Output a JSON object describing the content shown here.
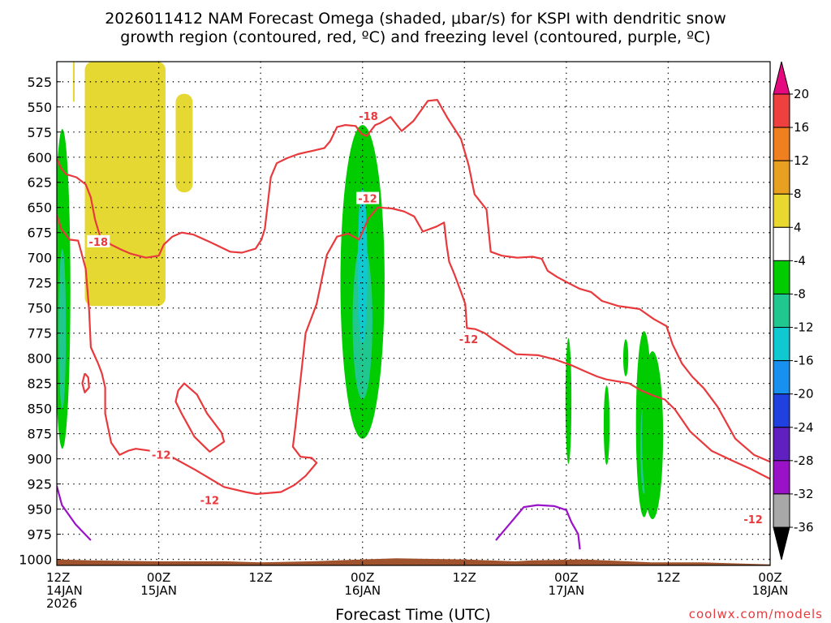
{
  "chart_data": {
    "type": "time-height",
    "title_line1": "2026011412 NAM Forecast Omega (shaded, μbar/s) for KSPI with dendritic snow",
    "title_line2": "growth region (contoured, red, ºC) and freezing level (contoured, purple, ºC)",
    "xlabel": "Forecast Time (UTC)",
    "credit": "coolwx.com/models",
    "x_range_hours": [
      0,
      84
    ],
    "x_ticks": [
      {
        "hour": 0,
        "l1": "12Z",
        "l2": "14JAN",
        "l3": "2026"
      },
      {
        "hour": 12,
        "l1": "00Z",
        "l2": "15JAN",
        "l3": ""
      },
      {
        "hour": 24,
        "l1": "12Z",
        "l2": "",
        "l3": ""
      },
      {
        "hour": 36,
        "l1": "00Z",
        "l2": "16JAN",
        "l3": ""
      },
      {
        "hour": 48,
        "l1": "12Z",
        "l2": "",
        "l3": ""
      },
      {
        "hour": 60,
        "l1": "00Z",
        "l2": "17JAN",
        "l3": ""
      },
      {
        "hour": 72,
        "l1": "12Z",
        "l2": "",
        "l3": ""
      },
      {
        "hour": 84,
        "l1": "00Z",
        "l2": "18JAN",
        "l3": ""
      }
    ],
    "y_axis_hpa": {
      "top": 505,
      "bottom": 1006,
      "ticks": [
        525,
        550,
        575,
        600,
        625,
        650,
        675,
        700,
        725,
        750,
        775,
        800,
        825,
        850,
        875,
        900,
        925,
        950,
        975,
        1000
      ]
    },
    "colorbar": {
      "labels": [
        "20",
        "16",
        "12",
        "8",
        "4",
        "-4",
        "-8",
        "-12",
        "-16",
        "-20",
        "-24",
        "-28",
        "-32",
        "-36"
      ],
      "colors": [
        "#e5097f",
        "#ef4040",
        "#f07f20",
        "#e8a020",
        "#e8d830",
        "#ffffff",
        "#00cc00",
        "#20c890",
        "#10c8d0",
        "#1890f0",
        "#2040e0",
        "#6020c0",
        "#9a12c8",
        "#a8a8a8",
        "#000000"
      ]
    },
    "colors": {
      "snow_growth_contour": "#e8393d",
      "freezing_level_contour": "#9a12c8",
      "terrain": "#a0522d",
      "omega_positive_4": "#e6d832",
      "omega_negative_4": "#00cc00",
      "omega_negative_8": "#20c890",
      "omega_negative_12": "#10c8d0"
    },
    "contour_labels": [
      {
        "text": "-18",
        "hour": 4.9,
        "hpa": 684
      },
      {
        "text": "-12",
        "hour": 12.3,
        "hpa": 896
      },
      {
        "text": "-12",
        "hour": 18.0,
        "hpa": 941
      },
      {
        "text": "-18",
        "hour": 36.7,
        "hpa": 559
      },
      {
        "text": "-12",
        "hour": 36.6,
        "hpa": 641
      },
      {
        "text": "-12",
        "hour": 48.5,
        "hpa": 781
      },
      {
        "text": "-12",
        "hour": 82.0,
        "hpa": 960
      }
    ],
    "snow_growth_contours_hour_hpa": [
      [
        [
          0,
          657
        ],
        [
          0.5,
          671
        ],
        [
          1.5,
          682
        ],
        [
          2.5,
          683
        ],
        [
          2.9,
          695
        ],
        [
          3.4,
          711
        ],
        [
          3.8,
          752
        ],
        [
          4.0,
          789
        ],
        [
          4.9,
          806
        ],
        [
          5.3,
          815
        ],
        [
          5.7,
          829
        ],
        [
          5.7,
          855
        ],
        [
          6.4,
          884
        ],
        [
          7.4,
          896
        ],
        [
          8.4,
          892
        ],
        [
          9.3,
          890
        ],
        [
          11,
          892
        ],
        [
          13.5,
          898
        ],
        [
          16.3,
          911
        ],
        [
          19.7,
          928
        ],
        [
          22.2,
          933
        ],
        [
          23.5,
          935
        ],
        [
          26.4,
          933
        ],
        [
          28.0,
          926
        ],
        [
          29.3,
          917
        ],
        [
          30.6,
          904
        ],
        [
          30.0,
          899
        ],
        [
          28.7,
          898
        ],
        [
          27.8,
          888
        ],
        [
          28.1,
          868
        ],
        [
          29.3,
          775
        ],
        [
          30.6,
          746
        ],
        [
          31.8,
          697
        ],
        [
          33.0,
          679
        ],
        [
          34.3,
          676
        ],
        [
          35.6,
          682
        ],
        [
          36.7,
          661
        ],
        [
          37.8,
          650
        ],
        [
          39.5,
          651
        ],
        [
          40.9,
          654
        ],
        [
          42.1,
          659
        ],
        [
          43.1,
          674
        ],
        [
          44.7,
          669
        ],
        [
          45.6,
          665
        ],
        [
          45.9,
          687
        ],
        [
          46.2,
          704
        ],
        [
          46.8,
          716
        ],
        [
          47.6,
          734
        ],
        [
          48.1,
          746
        ],
        [
          48.3,
          770
        ],
        [
          49.3,
          771
        ],
        [
          50.4,
          775
        ],
        [
          51.2,
          780
        ],
        [
          54.1,
          796
        ],
        [
          56.7,
          797
        ],
        [
          58.6,
          801
        ],
        [
          60.6,
          807
        ],
        [
          62.2,
          813
        ],
        [
          63.6,
          818
        ],
        [
          64.7,
          821
        ],
        [
          67.4,
          825
        ],
        [
          68.8,
          832
        ],
        [
          70.2,
          837
        ],
        [
          71.6,
          841
        ],
        [
          72.8,
          851
        ],
        [
          74.6,
          873
        ],
        [
          77.1,
          892
        ],
        [
          79.6,
          902
        ],
        [
          81.7,
          910
        ],
        [
          84,
          920
        ]
      ],
      [
        [
          0,
          601
        ],
        [
          0.5,
          611
        ],
        [
          1.1,
          617
        ],
        [
          2.3,
          620
        ],
        [
          3.4,
          627
        ],
        [
          4.0,
          640
        ],
        [
          4.5,
          662
        ],
        [
          5.1,
          679
        ],
        [
          6.4,
          687
        ],
        [
          7.6,
          692
        ],
        [
          8.7,
          696
        ],
        [
          10.5,
          700
        ],
        [
          12.0,
          698
        ],
        [
          12.6,
          687
        ],
        [
          13.6,
          679
        ],
        [
          14.7,
          675
        ],
        [
          16.1,
          677
        ],
        [
          18.2,
          685
        ],
        [
          20.4,
          694
        ],
        [
          21.8,
          695
        ],
        [
          23.4,
          691
        ],
        [
          24.1,
          682
        ],
        [
          24.5,
          671
        ],
        [
          25.2,
          620
        ],
        [
          25.9,
          606
        ],
        [
          27.1,
          601
        ],
        [
          28.4,
          597
        ],
        [
          29.4,
          595
        ],
        [
          31.5,
          591
        ],
        [
          32.2,
          584
        ],
        [
          33.0,
          570
        ],
        [
          34.0,
          568
        ],
        [
          35.2,
          569
        ],
        [
          35.9,
          577
        ],
        [
          36.5,
          579
        ],
        [
          37.5,
          568
        ],
        [
          38.1,
          566
        ],
        [
          39.3,
          560
        ],
        [
          40.6,
          574
        ],
        [
          42.0,
          564
        ],
        [
          43.7,
          544
        ],
        [
          44.8,
          543
        ],
        [
          46.0,
          561
        ],
        [
          47.6,
          582
        ],
        [
          48.5,
          608
        ],
        [
          49.2,
          637
        ],
        [
          50.6,
          652
        ],
        [
          51.1,
          694
        ],
        [
          52.4,
          698
        ],
        [
          54.2,
          700
        ],
        [
          56.0,
          699
        ],
        [
          57.1,
          701
        ],
        [
          57.8,
          713
        ],
        [
          58.9,
          719
        ],
        [
          60.2,
          725
        ],
        [
          61.6,
          731
        ],
        [
          62.9,
          734
        ],
        [
          64.2,
          743
        ],
        [
          66.1,
          748
        ],
        [
          68.6,
          751
        ],
        [
          70.3,
          761
        ],
        [
          71.8,
          768
        ],
        [
          72.5,
          786
        ],
        [
          73.6,
          805
        ],
        [
          74.8,
          818
        ],
        [
          76.2,
          830
        ],
        [
          77.8,
          848
        ],
        [
          79.9,
          880
        ],
        [
          82.1,
          896
        ],
        [
          84,
          903
        ]
      ]
    ],
    "small_snow_contours_hour_hpa": [
      [
        [
          14.3,
          832
        ],
        [
          15.0,
          825
        ],
        [
          16.5,
          836
        ],
        [
          17.7,
          855
        ],
        [
          19.4,
          874
        ],
        [
          19.7,
          883
        ],
        [
          18.0,
          893
        ],
        [
          16.2,
          878
        ],
        [
          14.7,
          855
        ],
        [
          14.0,
          843
        ],
        [
          14.3,
          832
        ]
      ],
      [
        [
          3.3,
          815
        ],
        [
          3.7,
          819
        ],
        [
          3.8,
          829
        ],
        [
          3.3,
          834
        ],
        [
          3.0,
          825
        ],
        [
          3.3,
          815
        ]
      ]
    ],
    "freezing_level_contours_hour_hpa": [
      [
        [
          0,
          927
        ],
        [
          0.6,
          946
        ],
        [
          2.2,
          965
        ],
        [
          4.0,
          981
        ]
      ],
      [
        [
          51.7,
          981
        ],
        [
          53.4,
          964
        ],
        [
          55.0,
          948
        ],
        [
          56.6,
          946
        ],
        [
          58.6,
          947
        ],
        [
          60.0,
          951
        ],
        [
          60.6,
          963
        ],
        [
          61.4,
          975
        ],
        [
          61.6,
          990
        ]
      ]
    ],
    "omega_positive_regions": [
      {
        "hour": [
          1.9,
          2.1
        ],
        "hpa": [
          505,
          545
        ]
      },
      {
        "hour": [
          3.3,
          12.8
        ],
        "hpa": [
          505,
          748
        ]
      },
      {
        "hour": [
          14.0,
          16.0
        ],
        "hpa": [
          537,
          635
        ]
      }
    ],
    "omega_negative_regions": [
      {
        "hour": [
          -0.3,
          1.6
        ],
        "hpa": [
          572,
          890
        ],
        "core": -8
      },
      {
        "hour": [
          33.4,
          38.6
        ],
        "hpa": [
          568,
          880
        ],
        "core": -12
      },
      {
        "hour": [
          59.9,
          60.6
        ],
        "hpa": [
          780,
          905
        ],
        "core": -4
      },
      {
        "hour": [
          64.4,
          65.1
        ],
        "hpa": [
          827,
          906
        ],
        "core": -4
      },
      {
        "hour": [
          66.7,
          67.3
        ],
        "hpa": [
          781,
          818
        ],
        "core": -4
      },
      {
        "hour": [
          68.2,
          70.1
        ],
        "hpa": [
          773,
          958
        ],
        "core": -8
      },
      {
        "hour": [
          68.9,
          71.4
        ],
        "hpa": [
          793,
          960
        ],
        "core": -4
      }
    ],
    "terrain_top_hpa": [
      [
        0,
        1000
      ],
      [
        4,
        1001
      ],
      [
        12,
        1002
      ],
      [
        20,
        1002
      ],
      [
        24,
        1003
      ],
      [
        30,
        1002
      ],
      [
        36,
        1000
      ],
      [
        40,
        999
      ],
      [
        48,
        1000
      ],
      [
        54,
        1002
      ],
      [
        56,
        1001
      ],
      [
        62,
        1000
      ],
      [
        70,
        1003
      ],
      [
        76,
        1003
      ],
      [
        84,
        1005
      ]
    ]
  }
}
